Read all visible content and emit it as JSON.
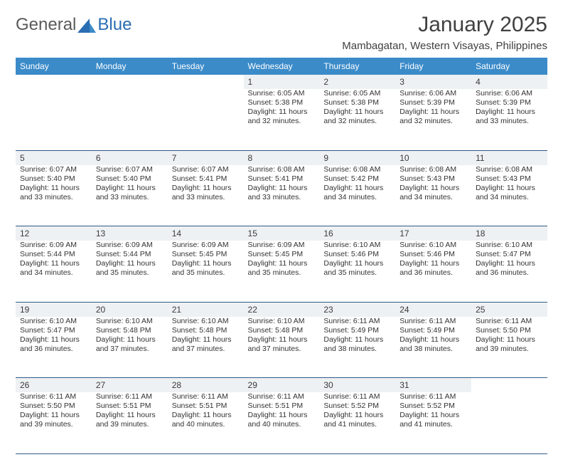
{
  "logo": {
    "text1": "General",
    "text2": "Blue",
    "color1": "#5a5a5a",
    "color2": "#2a6db3"
  },
  "title": "January 2025",
  "subtitle": "Mambagatan, Western Visayas, Philippines",
  "calendar": {
    "type": "table",
    "header_bg": "#3b8bc9",
    "header_fg": "#ffffff",
    "daynum_bg": "#eef1f3",
    "border_color": "#2f5b87",
    "body_fontsize": 10.5,
    "header_fontsize": 12,
    "columns": [
      "Sunday",
      "Monday",
      "Tuesday",
      "Wednesday",
      "Thursday",
      "Friday",
      "Saturday"
    ],
    "weeks": [
      [
        null,
        null,
        null,
        {
          "n": "1",
          "sr": "6:05 AM",
          "ss": "5:38 PM",
          "dl": "11 hours and 32 minutes."
        },
        {
          "n": "2",
          "sr": "6:05 AM",
          "ss": "5:38 PM",
          "dl": "11 hours and 32 minutes."
        },
        {
          "n": "3",
          "sr": "6:06 AM",
          "ss": "5:39 PM",
          "dl": "11 hours and 32 minutes."
        },
        {
          "n": "4",
          "sr": "6:06 AM",
          "ss": "5:39 PM",
          "dl": "11 hours and 33 minutes."
        }
      ],
      [
        {
          "n": "5",
          "sr": "6:07 AM",
          "ss": "5:40 PM",
          "dl": "11 hours and 33 minutes."
        },
        {
          "n": "6",
          "sr": "6:07 AM",
          "ss": "5:40 PM",
          "dl": "11 hours and 33 minutes."
        },
        {
          "n": "7",
          "sr": "6:07 AM",
          "ss": "5:41 PM",
          "dl": "11 hours and 33 minutes."
        },
        {
          "n": "8",
          "sr": "6:08 AM",
          "ss": "5:41 PM",
          "dl": "11 hours and 33 minutes."
        },
        {
          "n": "9",
          "sr": "6:08 AM",
          "ss": "5:42 PM",
          "dl": "11 hours and 34 minutes."
        },
        {
          "n": "10",
          "sr": "6:08 AM",
          "ss": "5:43 PM",
          "dl": "11 hours and 34 minutes."
        },
        {
          "n": "11",
          "sr": "6:08 AM",
          "ss": "5:43 PM",
          "dl": "11 hours and 34 minutes."
        }
      ],
      [
        {
          "n": "12",
          "sr": "6:09 AM",
          "ss": "5:44 PM",
          "dl": "11 hours and 34 minutes."
        },
        {
          "n": "13",
          "sr": "6:09 AM",
          "ss": "5:44 PM",
          "dl": "11 hours and 35 minutes."
        },
        {
          "n": "14",
          "sr": "6:09 AM",
          "ss": "5:45 PM",
          "dl": "11 hours and 35 minutes."
        },
        {
          "n": "15",
          "sr": "6:09 AM",
          "ss": "5:45 PM",
          "dl": "11 hours and 35 minutes."
        },
        {
          "n": "16",
          "sr": "6:10 AM",
          "ss": "5:46 PM",
          "dl": "11 hours and 35 minutes."
        },
        {
          "n": "17",
          "sr": "6:10 AM",
          "ss": "5:46 PM",
          "dl": "11 hours and 36 minutes."
        },
        {
          "n": "18",
          "sr": "6:10 AM",
          "ss": "5:47 PM",
          "dl": "11 hours and 36 minutes."
        }
      ],
      [
        {
          "n": "19",
          "sr": "6:10 AM",
          "ss": "5:47 PM",
          "dl": "11 hours and 36 minutes."
        },
        {
          "n": "20",
          "sr": "6:10 AM",
          "ss": "5:48 PM",
          "dl": "11 hours and 37 minutes."
        },
        {
          "n": "21",
          "sr": "6:10 AM",
          "ss": "5:48 PM",
          "dl": "11 hours and 37 minutes."
        },
        {
          "n": "22",
          "sr": "6:10 AM",
          "ss": "5:48 PM",
          "dl": "11 hours and 37 minutes."
        },
        {
          "n": "23",
          "sr": "6:11 AM",
          "ss": "5:49 PM",
          "dl": "11 hours and 38 minutes."
        },
        {
          "n": "24",
          "sr": "6:11 AM",
          "ss": "5:49 PM",
          "dl": "11 hours and 38 minutes."
        },
        {
          "n": "25",
          "sr": "6:11 AM",
          "ss": "5:50 PM",
          "dl": "11 hours and 39 minutes."
        }
      ],
      [
        {
          "n": "26",
          "sr": "6:11 AM",
          "ss": "5:50 PM",
          "dl": "11 hours and 39 minutes."
        },
        {
          "n": "27",
          "sr": "6:11 AM",
          "ss": "5:51 PM",
          "dl": "11 hours and 39 minutes."
        },
        {
          "n": "28",
          "sr": "6:11 AM",
          "ss": "5:51 PM",
          "dl": "11 hours and 40 minutes."
        },
        {
          "n": "29",
          "sr": "6:11 AM",
          "ss": "5:51 PM",
          "dl": "11 hours and 40 minutes."
        },
        {
          "n": "30",
          "sr": "6:11 AM",
          "ss": "5:52 PM",
          "dl": "11 hours and 41 minutes."
        },
        {
          "n": "31",
          "sr": "6:11 AM",
          "ss": "5:52 PM",
          "dl": "11 hours and 41 minutes."
        },
        null
      ]
    ],
    "labels": {
      "sunrise": "Sunrise:",
      "sunset": "Sunset:",
      "daylight": "Daylight:"
    }
  }
}
